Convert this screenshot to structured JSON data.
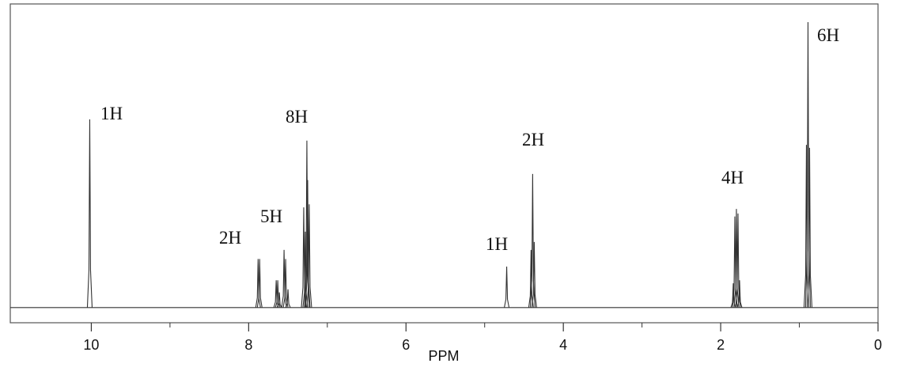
{
  "chart_data": {
    "type": "spectrum",
    "xlabel": "PPM",
    "xlim": [
      11.03,
      0
    ],
    "ylim": [
      -5,
      100
    ],
    "xticks": [
      10,
      8,
      6,
      4,
      2,
      0
    ],
    "xminorticks": [
      9,
      7,
      5,
      3,
      1
    ],
    "color": "#333333",
    "peaks": {
      "x": [
        10.02,
        7.88,
        7.86,
        7.65,
        7.63,
        7.61,
        7.55,
        7.53,
        7.5,
        7.3,
        7.28,
        7.26,
        7.25,
        7.23,
        4.72,
        4.41,
        4.39,
        4.37,
        1.84,
        1.82,
        1.8,
        1.78,
        1.76,
        0.91,
        0.89,
        0.87
      ],
      "values": [
        62,
        16,
        16,
        9,
        9,
        5,
        19,
        16,
        6,
        33,
        25,
        55,
        42,
        34,
        13.5,
        19,
        44,
        21.6,
        8,
        30,
        32.5,
        31,
        9,
        53.6,
        94,
        52.6
      ]
    },
    "annotations": [
      "1H",
      "2H",
      "5H",
      "8H",
      "1H",
      "2H",
      "4H",
      "6H"
    ]
  }
}
